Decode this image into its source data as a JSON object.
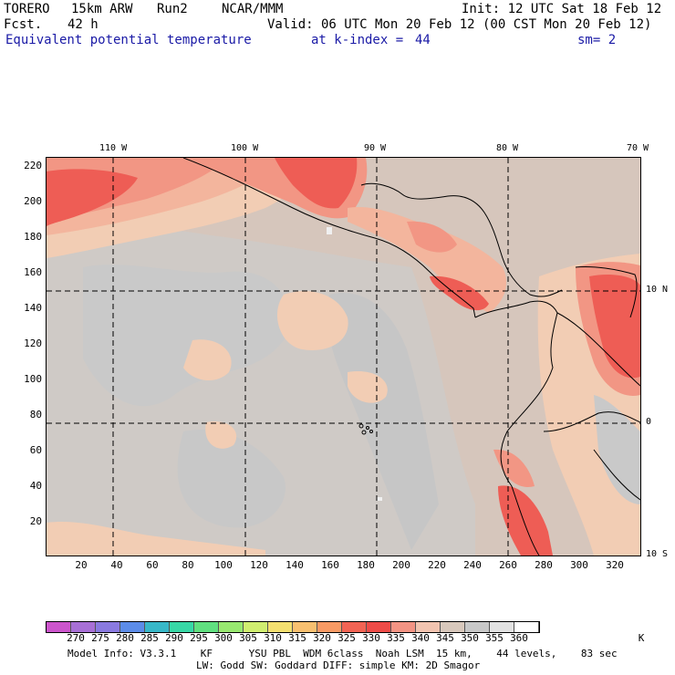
{
  "header": {
    "model": "TORERO",
    "resolution": "15km ARW",
    "run": "Run2",
    "org": "NCAR/MMM",
    "init": "Init: 12 UTC Sat 18 Feb 12",
    "fcst_label": "Fcst.",
    "fcst_value": "42 h",
    "valid": "Valid: 06 UTC Mon 20 Feb 12 (00 CST Mon 20 Feb 12)",
    "field": "Equivalent potential temperature",
    "level": "at k-index =",
    "level_value": "44",
    "smoothing": "sm= 2"
  },
  "map": {
    "top_lon_labels": [
      "110 W",
      "100 W",
      "90 W",
      "80 W",
      "70 W"
    ],
    "right_lat_labels": [
      "10 N",
      "0",
      "10 S"
    ],
    "y_ticks": [
      "220",
      "200",
      "180",
      "160",
      "140",
      "120",
      "100",
      "80",
      "60",
      "40",
      "20"
    ],
    "x_ticks": [
      "20",
      "40",
      "60",
      "80",
      "100",
      "120",
      "140",
      "160",
      "180",
      "200",
      "220",
      "240",
      "260",
      "280",
      "300",
      "320"
    ],
    "colors": {
      "base_ocean": "#d4c7c0",
      "gray": "#c9c9c9",
      "light_peach": "#f2cdb4",
      "peach": "#f3b59d",
      "salmon": "#f29684",
      "red": "#ee5d55",
      "red_dark": "#ea4a45"
    }
  },
  "colorbar": {
    "labels": [
      "270",
      "275",
      "280",
      "285",
      "290",
      "295",
      "300",
      "305",
      "310",
      "315",
      "320",
      "325",
      "330",
      "335",
      "340",
      "345",
      "350",
      "355",
      "360"
    ],
    "unit": "K",
    "colors": [
      "#cc55cc",
      "#a870d6",
      "#8a7ae0",
      "#5c8ce8",
      "#38b8c8",
      "#38d8a6",
      "#60e080",
      "#98e870",
      "#d0ee70",
      "#f4e070",
      "#f8c070",
      "#f89a64",
      "#f26454",
      "#ee4c48",
      "#f39484",
      "#f2c4b0",
      "#d8c8bc",
      "#c8c8c8",
      "#e2e2e2",
      "#ffffff"
    ]
  },
  "footer": {
    "line1": "Model Info: V3.3.1    KF      YSU PBL  WDM 6class  Noah LSM  15 km,    44 levels,    83 sec",
    "line2": "LW: Godd SW: Goddard DIFF: simple KM: 2D Smagor"
  }
}
